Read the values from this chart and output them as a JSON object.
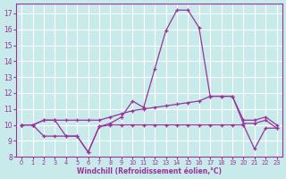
{
  "xlabel": "Windchill (Refroidissement éolien,°C)",
  "xlim": [
    -0.5,
    23.5
  ],
  "ylim": [
    8,
    17.6
  ],
  "yticks": [
    8,
    9,
    10,
    11,
    12,
    13,
    14,
    15,
    16,
    17
  ],
  "xticks": [
    0,
    1,
    2,
    3,
    4,
    5,
    6,
    7,
    8,
    9,
    10,
    11,
    12,
    13,
    14,
    15,
    16,
    17,
    18,
    19,
    20,
    21,
    22,
    23
  ],
  "bg_color": "#c8eaea",
  "line_color": "#993399",
  "grid_color": "#ffffff",
  "series": [
    {
      "x": [
        0,
        1,
        2,
        3,
        4,
        5,
        6,
        7,
        8,
        9,
        10,
        11,
        12,
        13,
        14,
        15,
        16,
        17,
        18,
        19,
        20,
        21,
        22,
        23
      ],
      "y": [
        10.0,
        10.0,
        10.3,
        10.3,
        9.3,
        9.3,
        8.3,
        9.9,
        10.1,
        10.5,
        11.5,
        11.1,
        13.5,
        15.9,
        17.2,
        17.2,
        16.1,
        11.8,
        11.8,
        11.8,
        10.1,
        10.1,
        10.3,
        9.8
      ]
    },
    {
      "x": [
        0,
        1,
        2,
        3,
        4,
        5,
        6,
        7,
        8,
        9,
        10,
        11,
        12,
        13,
        14,
        15,
        16,
        17,
        18,
        19,
        20,
        21,
        22,
        23
      ],
      "y": [
        10.0,
        10.0,
        10.3,
        10.3,
        10.3,
        10.3,
        10.3,
        10.3,
        10.5,
        10.7,
        10.9,
        11.0,
        11.1,
        11.2,
        11.3,
        11.4,
        11.5,
        11.8,
        11.8,
        11.8,
        10.3,
        10.3,
        10.5,
        10.0
      ]
    },
    {
      "x": [
        0,
        1,
        2,
        3,
        4,
        5,
        6,
        7,
        8,
        9,
        10,
        11,
        12,
        13,
        14,
        15,
        16,
        17,
        18,
        19,
        20,
        21,
        22,
        23
      ],
      "y": [
        10.0,
        10.0,
        9.3,
        9.3,
        9.3,
        9.3,
        8.3,
        9.9,
        10.0,
        10.0,
        10.0,
        10.0,
        10.0,
        10.0,
        10.0,
        10.0,
        10.0,
        10.0,
        10.0,
        10.0,
        10.0,
        8.5,
        9.8,
        9.8
      ]
    }
  ]
}
